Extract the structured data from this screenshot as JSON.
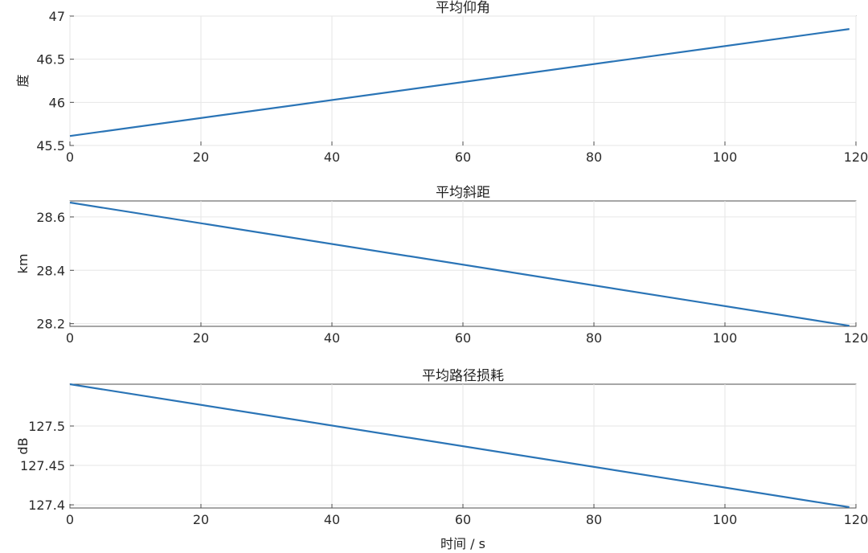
{
  "chart_data": [
    {
      "type": "line",
      "title": "平均仰角",
      "xlabel": "",
      "ylabel": "度",
      "xlim": [
        0,
        120
      ],
      "ylim": [
        45.5,
        47
      ],
      "xticks": [
        0,
        20,
        40,
        60,
        80,
        100,
        120
      ],
      "xtick_labels": [
        "0",
        "20",
        "40",
        "60",
        "80",
        "100",
        "120"
      ],
      "yticks": [
        45.5,
        46,
        46.5,
        47
      ],
      "ytick_labels": [
        "45.5",
        "46",
        "46.5",
        "47"
      ],
      "grid": true,
      "series": [
        {
          "color": "#2a74b6",
          "x": [
            0,
            119
          ],
          "y": [
            45.61,
            46.85
          ]
        }
      ]
    },
    {
      "type": "line",
      "title": "平均斜距",
      "xlabel": "",
      "ylabel": "km",
      "xlim": [
        0,
        120
      ],
      "ylim": [
        28.19,
        28.66
      ],
      "xticks": [
        0,
        20,
        40,
        60,
        80,
        100,
        120
      ],
      "xtick_labels": [
        "0",
        "20",
        "40",
        "60",
        "80",
        "100",
        "120"
      ],
      "yticks": [
        28.2,
        28.4,
        28.6
      ],
      "ytick_labels": [
        "28.2",
        "28.4",
        "28.6"
      ],
      "grid": true,
      "series": [
        {
          "color": "#2a74b6",
          "x": [
            0,
            119
          ],
          "y": [
            28.654,
            28.192
          ]
        }
      ]
    },
    {
      "type": "line",
      "title": "平均路径损耗",
      "xlabel": "时间 / s",
      "ylabel": "dB",
      "xlim": [
        0,
        120
      ],
      "ylim": [
        127.396,
        127.553
      ],
      "xticks": [
        0,
        20,
        40,
        60,
        80,
        100,
        120
      ],
      "xtick_labels": [
        "0",
        "20",
        "40",
        "60",
        "80",
        "100",
        "120"
      ],
      "yticks": [
        127.4,
        127.45,
        127.5
      ],
      "ytick_labels": [
        "127.4",
        "127.45",
        "127.5"
      ],
      "grid": true,
      "series": [
        {
          "color": "#2a74b6",
          "x": [
            0,
            119
          ],
          "y": [
            127.553,
            127.397
          ]
        }
      ]
    }
  ]
}
